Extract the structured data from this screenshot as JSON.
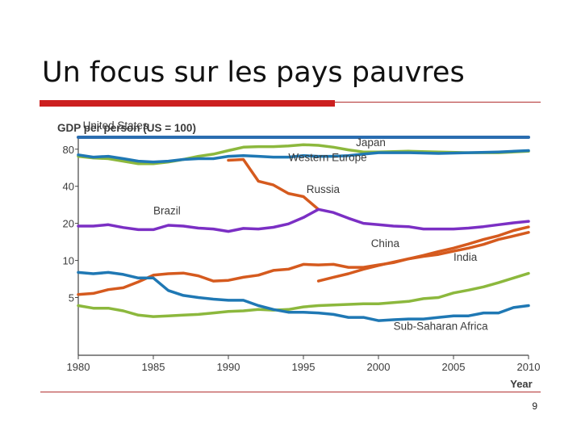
{
  "slide": {
    "title": "Un focus sur les pays pauvres",
    "page_number": "9"
  },
  "colors": {
    "accent": "#cc1f1f",
    "rule": "#b23030",
    "axis": "#444444",
    "text": "#3b3b3b"
  },
  "chart_data": {
    "type": "line",
    "title": "GDP per person (US = 100)",
    "xlabel": "Year",
    "ylabel": "",
    "y_scale": "log",
    "xlim": [
      1980,
      2010
    ],
    "ylim": [
      1.7,
      100
    ],
    "x_ticks": [
      1980,
      1985,
      1990,
      1995,
      2000,
      2005,
      2010
    ],
    "y_ticks": [
      5,
      10,
      20,
      40,
      80
    ],
    "grid": false,
    "legend": "inline labels",
    "series": [
      {
        "name": "United States",
        "color": "#2a6db0",
        "width": 4,
        "x": [
          1980,
          2010
        ],
        "y": [
          100,
          100
        ]
      },
      {
        "name": "Japan",
        "color": "#8cb83d",
        "width": 3.5,
        "x": [
          1980,
          1981,
          1982,
          1983,
          1984,
          1985,
          1986,
          1987,
          1988,
          1989,
          1990,
          1991,
          1992,
          1993,
          1994,
          1995,
          1996,
          1997,
          1998,
          1999,
          2000,
          2002,
          2004,
          2006,
          2008,
          2010
        ],
        "y": [
          70,
          68,
          67,
          64,
          61,
          61,
          63,
          66,
          70,
          73,
          78,
          83,
          84,
          84,
          85,
          87,
          86,
          83,
          79,
          76,
          76,
          77,
          76,
          75,
          75,
          77
        ]
      },
      {
        "name": "Western Europe",
        "color": "#1f78b4",
        "width": 3.5,
        "x": [
          1980,
          1981,
          1982,
          1983,
          1984,
          1985,
          1986,
          1987,
          1988,
          1989,
          1990,
          1991,
          1992,
          1993,
          1994,
          1995,
          1996,
          1997,
          1998,
          1999,
          2000,
          2002,
          2004,
          2006,
          2008,
          2010
        ],
        "y": [
          72,
          69,
          70,
          67,
          64,
          63,
          64,
          66,
          67,
          67,
          70,
          71,
          70,
          69,
          69,
          71,
          70,
          70,
          71,
          73,
          75,
          75,
          74,
          75,
          76,
          78
        ]
      },
      {
        "name": "Russia",
        "color": "#d55a1e",
        "width": 3.5,
        "x": [
          1990,
          1991,
          1992,
          1993,
          1994,
          1995,
          1996
        ],
        "y": [
          65,
          66,
          44,
          41,
          35,
          33,
          26
        ]
      },
      {
        "name": "Brazil",
        "color": "#7b2fc4",
        "width": 3.5,
        "x": [
          1980,
          1981,
          1982,
          1983,
          1984,
          1985,
          1986,
          1987,
          1988,
          1989,
          1990,
          1991,
          1992,
          1993,
          1994,
          1995,
          1996,
          1997,
          1998,
          1999,
          2000,
          2001,
          2002,
          2003,
          2004,
          2005,
          2006,
          2007,
          2008,
          2009,
          2010
        ],
        "y": [
          19,
          19,
          19.5,
          18.5,
          17.8,
          17.8,
          19.3,
          19,
          18.3,
          18,
          17.2,
          18.2,
          18,
          18.6,
          19.8,
          22.3,
          26,
          24.5,
          22,
          20,
          19.5,
          19,
          18.8,
          18,
          18,
          18,
          18.3,
          18.8,
          19.5,
          20.2,
          20.8
        ]
      },
      {
        "name": "China",
        "color": "#d55a1e",
        "width": 3.5,
        "x": [
          1996,
          1997,
          1998,
          1999,
          2000,
          2001,
          2002,
          2003,
          2004,
          2005,
          2006,
          2007,
          2008,
          2009,
          2010
        ],
        "y": [
          6.8,
          7.3,
          7.8,
          8.5,
          9.1,
          9.7,
          10.3,
          11,
          11.8,
          12.6,
          13.6,
          14.8,
          15.9,
          17.5,
          18.7
        ]
      },
      {
        "name": "India",
        "color": "#d55a1e",
        "width": 3.5,
        "x": [
          1980,
          1981,
          1982,
          1983,
          1984,
          1985,
          1986,
          1987,
          1988,
          1989,
          1990,
          1991,
          1992,
          1993,
          1994,
          1995,
          1996,
          1997,
          1998,
          1999,
          2000,
          2001,
          2002,
          2003,
          2004,
          2005,
          2006,
          2007,
          2008,
          2009,
          2010
        ],
        "y": [
          5.3,
          5.4,
          5.8,
          6,
          6.7,
          7.6,
          7.8,
          7.9,
          7.5,
          6.8,
          6.9,
          7.3,
          7.6,
          8.3,
          8.5,
          9.3,
          9.2,
          9.3,
          8.8,
          8.8,
          9.2,
          9.6,
          10.3,
          10.8,
          11.2,
          11.9,
          12.6,
          13.5,
          14.8,
          15.8,
          16.9
        ]
      },
      {
        "name": "Sub-Saharan Africa",
        "color": "#8cb83d",
        "width": 3.5,
        "x": [
          1980,
          1981,
          1982,
          1983,
          1984,
          1985,
          1986,
          1987,
          1988,
          1989,
          1990,
          1991,
          1992,
          1993,
          1994,
          1995,
          1996,
          1997,
          1998,
          1999,
          2000,
          2001,
          2002,
          2003,
          2004,
          2005,
          2006,
          2007,
          2008,
          2009,
          2010
        ],
        "y": [
          4.3,
          4.1,
          4.1,
          3.9,
          3.6,
          3.5,
          3.55,
          3.6,
          3.65,
          3.75,
          3.85,
          3.9,
          4.0,
          3.95,
          4.0,
          4.2,
          4.3,
          4.35,
          4.4,
          4.45,
          4.45,
          4.55,
          4.65,
          4.9,
          5.0,
          5.45,
          5.75,
          6.1,
          6.6,
          7.2,
          7.85
        ]
      },
      {
        "name": "",
        "color": "#1f78b4",
        "width": 3.5,
        "x": [
          1980,
          1981,
          1982,
          1983,
          1984,
          1985,
          1986,
          1987,
          1988,
          1989,
          1990,
          1991,
          1992,
          1993,
          1994,
          1995,
          1996,
          1997,
          1998,
          1999,
          2000,
          2001,
          2002,
          2003,
          2004,
          2005,
          2006,
          2007,
          2008,
          2009,
          2010
        ],
        "y": [
          8.0,
          7.8,
          8.0,
          7.7,
          7.2,
          7.2,
          5.7,
          5.2,
          5.0,
          4.85,
          4.75,
          4.75,
          4.3,
          4.0,
          3.8,
          3.8,
          3.75,
          3.65,
          3.45,
          3.45,
          3.25,
          3.3,
          3.35,
          3.35,
          3.45,
          3.55,
          3.55,
          3.75,
          3.75,
          4.15,
          4.3
        ]
      }
    ],
    "labels": [
      {
        "text": "United States",
        "series": "United States",
        "x": 1980.3,
        "y": 116,
        "anchor": "start"
      },
      {
        "text": "Japan",
        "series": "Japan",
        "x": 1998.5,
        "y": 84.5,
        "anchor": "start"
      },
      {
        "text": "Western Europe",
        "series": "Western Europe",
        "x": 1994,
        "y": 64,
        "anchor": "start"
      },
      {
        "text": "Russia",
        "series": "Russia",
        "x": 1995.2,
        "y": 35.4,
        "anchor": "start"
      },
      {
        "text": "Brazil",
        "series": "Brazil",
        "x": 1985,
        "y": 23.7,
        "anchor": "start"
      },
      {
        "text": "China",
        "series": "China",
        "x": 1999.5,
        "y": 12.8,
        "anchor": "start"
      },
      {
        "text": "India",
        "series": "India",
        "x": 2005,
        "y": 9.9,
        "anchor": "start"
      },
      {
        "text": "Sub-Saharan Africa",
        "series": "Sub-Saharan Africa",
        "x": 2001,
        "y": 2.73,
        "anchor": "start"
      }
    ]
  }
}
